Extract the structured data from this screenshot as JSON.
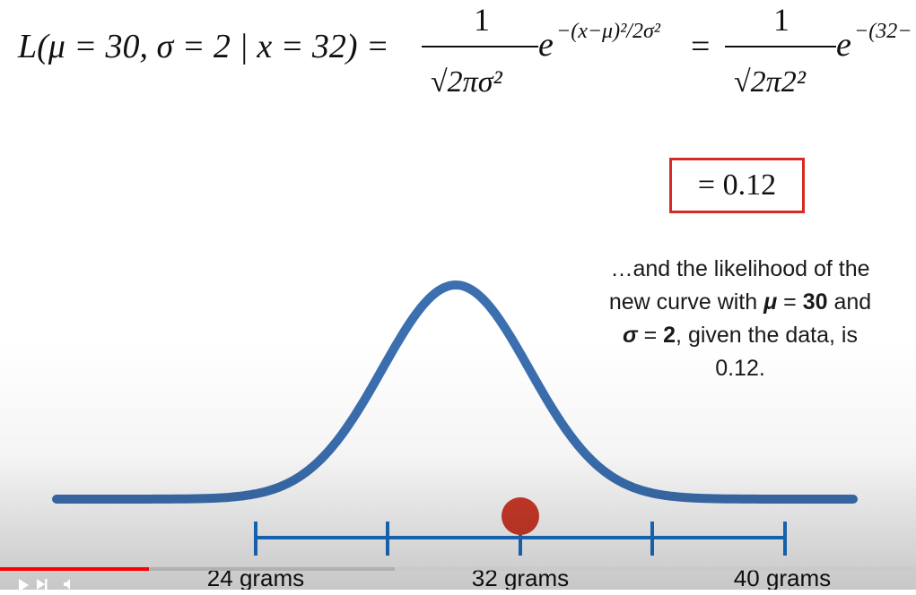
{
  "equation": {
    "lhs": "L(μ = 30, σ = 2 | x = 32) =",
    "frac1_num": "1",
    "frac1_den": "√2πσ²",
    "exp1_base": "e",
    "exp1_power": "−(x−μ)²/2σ²",
    "equals2": "=",
    "frac2_num": "1",
    "frac2_den": "√2π2²",
    "exp2_base": "e",
    "exp2_power": "−(32−"
  },
  "result": "= 0.12",
  "caption": {
    "line1": "…and the likelihood of the",
    "line2_pre": "new curve with ",
    "mu_sym": "μ",
    "eq": " = ",
    "mu_val": "30",
    "line2_post": " and",
    "sigma_sym": "σ",
    "sigma_val": "2",
    "line3_post": ", given the data, is",
    "line4": "0.12."
  },
  "axis": {
    "labels": [
      "24 grams",
      "32 grams",
      "40 grams"
    ]
  },
  "colors": {
    "curve": "#3b6fb0",
    "axis": "#1a72c9",
    "point": "#d13b2a",
    "box": "#d62a26",
    "progress": "#ff0000"
  },
  "player": {
    "progress_fraction": 0.163,
    "play_icon": "play-icon",
    "volume_icon": "volume-icon"
  }
}
